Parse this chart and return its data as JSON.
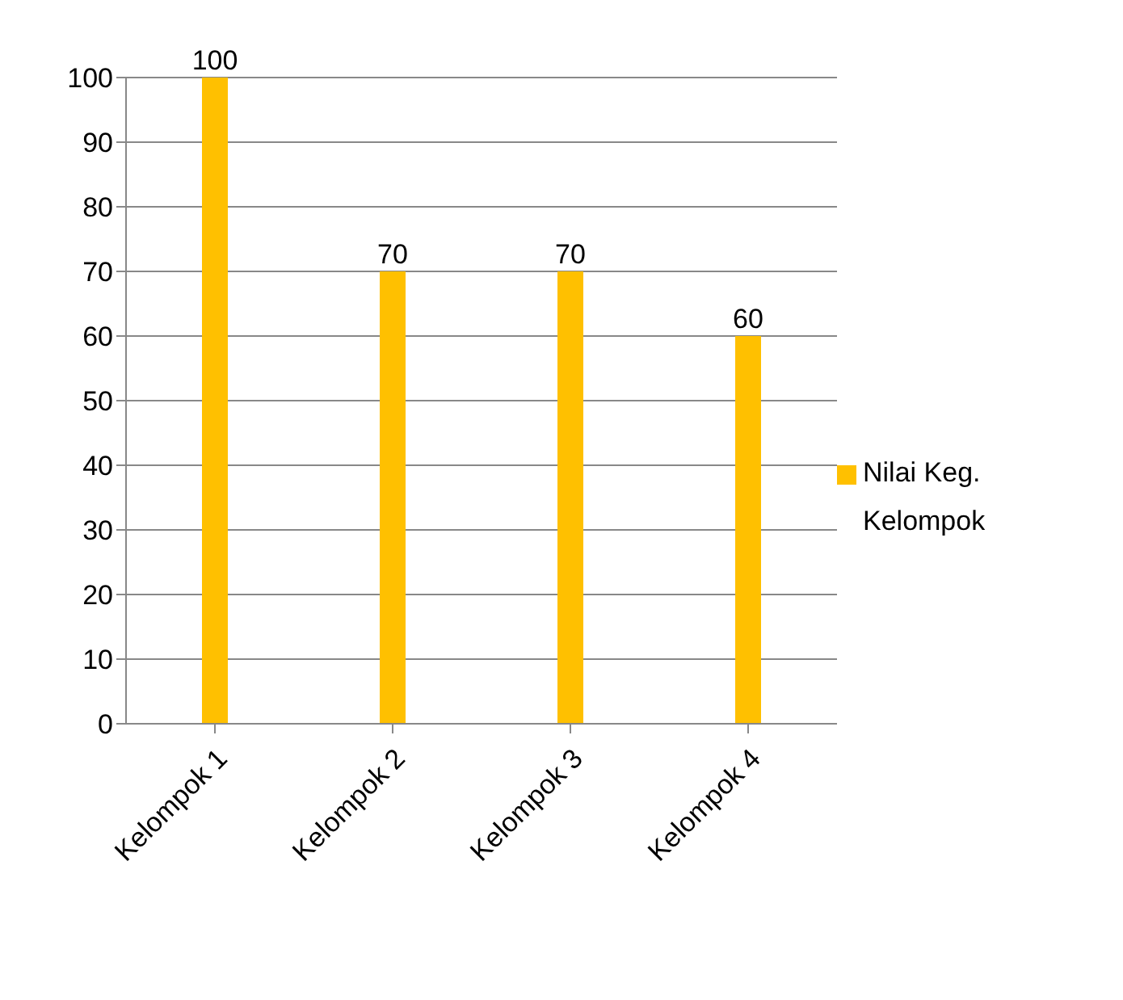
{
  "chart_data": {
    "type": "bar",
    "categories": [
      "Kelompok 1",
      "Kelompok 2",
      "Kelompok 3",
      "Kelompok 4"
    ],
    "series": [
      {
        "name": "Nilai Keg. Kelompok",
        "color": "#ffc000",
        "values": [
          100,
          70,
          70,
          60
        ]
      }
    ],
    "ylim": [
      0,
      100
    ],
    "yticks": [
      0,
      10,
      20,
      30,
      40,
      50,
      60,
      70,
      80,
      90,
      100
    ],
    "grid": "y",
    "legend": "right",
    "data_labels": true
  }
}
